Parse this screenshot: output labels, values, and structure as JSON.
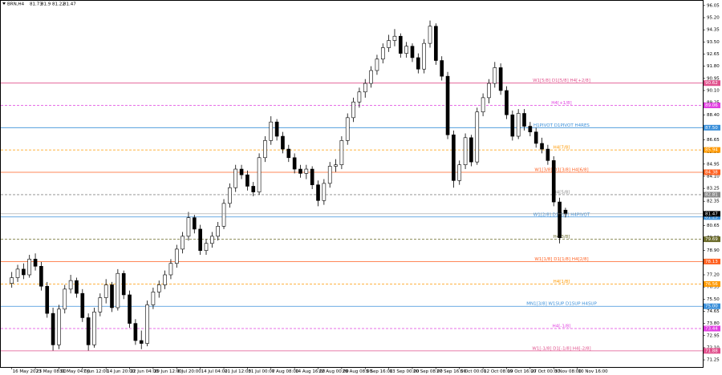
{
  "chart_data": {
    "type": "candlestick",
    "symbol": "BRN,H4",
    "ylim": [
      70.75,
      96.38
    ],
    "xlim": [
      -2,
      117.3
    ],
    "yticks": [
      96.05,
      {
        "value": 95.2,
        "label": "95.20"
      },
      94.35,
      {
        "value": 93.5,
        "label": "93.50"
      },
      92.65,
      {
        "value": 91.8,
        "label": "91.80"
      },
      90.95,
      {
        "value": 90.1,
        "label": "90.10"
      },
      89.25,
      {
        "value": 88.4,
        "label": "88.40"
      },
      87.55,
      86.65,
      {
        "value": 85.8,
        "label": "85.80"
      },
      84.95,
      {
        "value": 84.1,
        "label": "84.10"
      },
      83.25,
      82.35,
      {
        "value": 81.5,
        "label": "81.50"
      },
      80.65,
      {
        "value": 79.8,
        "label": "79.80"
      },
      {
        "value": 78.9,
        "label": "78.90"
      },
      78.05,
      {
        "value": 77.2,
        "label": "77.20"
      },
      76.35,
      {
        "value": 75.5,
        "label": "75.50"
      },
      74.65,
      {
        "value": 73.8,
        "label": "73.80"
      },
      72.95,
      {
        "value": 72.1,
        "label": "72.10"
      },
      71.25
    ],
    "xticks": [
      {
        "value": 0,
        "label": "16 May 2023"
      },
      {
        "value": 4,
        "label": "23 May 08:00"
      },
      {
        "value": 8,
        "label": "31 May 04:00"
      },
      {
        "value": 12,
        "label": "7 Jun 12:00"
      },
      {
        "value": 16,
        "label": "14 Jun 20:00"
      },
      {
        "value": 20,
        "label": "22 Jun 04:00"
      },
      {
        "value": 24,
        "label": "29 Jun 12:00"
      },
      {
        "value": 28,
        "label": "6 Jul 20:00"
      },
      {
        "value": 32,
        "label": "14 Jul 04:00"
      },
      {
        "value": 36,
        "label": "21 Jul 12:00"
      },
      {
        "value": 40,
        "label": "31 Jul 00:00"
      },
      {
        "value": 44,
        "label": "7 Aug 08:00"
      },
      {
        "value": 48,
        "label": "14 Aug 16:00"
      },
      {
        "value": 52,
        "label": "22 Aug 00:00"
      },
      {
        "value": 56,
        "label": "29 Aug 08:00"
      },
      {
        "value": 60,
        "label": "5 Sep 16:00"
      },
      {
        "value": 64,
        "label": "13 Sep 00:00"
      },
      {
        "value": 68,
        "label": "20 Sep 08:00"
      },
      {
        "value": 72,
        "label": "27 Sep 16:00"
      },
      {
        "value": 76,
        "label": "5 Oct 00:00"
      },
      {
        "value": 80,
        "label": "12 Oct 08:00"
      },
      {
        "value": 84,
        "label": "19 Oct 16:00"
      },
      {
        "value": 88,
        "label": "27 Oct 00:00"
      },
      {
        "value": 92,
        "label": "3 Nov 08:00"
      },
      {
        "value": 96,
        "label": "10 Nov 16:00"
      }
    ],
    "candles": [
      [
        76.6,
        77.4,
        76.3,
        77.0
      ],
      [
        77.0,
        77.9,
        76.7,
        77.6
      ],
      [
        77.6,
        78.0,
        76.9,
        77.2
      ],
      [
        77.2,
        78.6,
        77.0,
        78.3
      ],
      [
        78.3,
        78.7,
        77.5,
        77.8
      ],
      [
        77.8,
        78.1,
        76.1,
        76.4
      ],
      [
        76.4,
        76.7,
        74.2,
        74.5
      ],
      [
        74.5,
        74.9,
        71.9,
        72.3
      ],
      [
        72.3,
        75.1,
        72.0,
        74.8
      ],
      [
        74.8,
        76.5,
        74.5,
        76.2
      ],
      [
        76.2,
        77.2,
        75.9,
        76.8
      ],
      [
        76.8,
        77.0,
        75.6,
        75.9
      ],
      [
        75.9,
        76.2,
        73.9,
        74.2
      ],
      [
        74.2,
        74.5,
        71.9,
        72.3
      ],
      [
        72.3,
        74.9,
        72.1,
        74.6
      ],
      [
        74.6,
        75.9,
        74.3,
        75.6
      ],
      [
        75.6,
        76.9,
        75.2,
        76.5
      ],
      [
        76.5,
        76.7,
        74.6,
        74.9
      ],
      [
        74.9,
        77.6,
        74.7,
        77.3
      ],
      [
        77.3,
        77.5,
        75.5,
        75.8
      ],
      [
        75.8,
        76.1,
        73.5,
        73.8
      ],
      [
        73.8,
        74.1,
        72.3,
        72.6
      ],
      [
        72.6,
        73.3,
        72.0,
        72.4
      ],
      [
        72.4,
        75.4,
        72.2,
        75.1
      ],
      [
        75.1,
        76.3,
        74.8,
        76.0
      ],
      [
        76.0,
        76.8,
        75.6,
        76.5
      ],
      [
        76.5,
        77.5,
        76.2,
        77.2
      ],
      [
        77.2,
        78.3,
        76.9,
        78.0
      ],
      [
        78.0,
        79.3,
        77.7,
        79.0
      ],
      [
        79.0,
        80.2,
        78.7,
        79.9
      ],
      [
        79.9,
        81.6,
        79.6,
        81.2
      ],
      [
        81.2,
        81.4,
        80.1,
        80.4
      ],
      [
        80.4,
        80.7,
        78.6,
        78.9
      ],
      [
        78.9,
        79.7,
        78.6,
        79.4
      ],
      [
        79.4,
        80.2,
        79.1,
        79.9
      ],
      [
        79.9,
        80.9,
        79.6,
        80.6
      ],
      [
        80.6,
        82.5,
        80.4,
        82.2
      ],
      [
        82.2,
        83.6,
        81.9,
        83.3
      ],
      [
        83.3,
        84.9,
        83.0,
        84.6
      ],
      [
        84.6,
        84.9,
        83.9,
        84.2
      ],
      [
        84.2,
        84.5,
        83.1,
        83.4
      ],
      [
        83.4,
        83.7,
        82.7,
        83.0
      ],
      [
        83.0,
        85.7,
        82.8,
        85.4
      ],
      [
        85.4,
        86.9,
        85.1,
        86.6
      ],
      [
        86.6,
        88.3,
        86.3,
        87.9
      ],
      [
        87.9,
        88.1,
        86.6,
        86.9
      ],
      [
        86.9,
        87.2,
        85.7,
        86.0
      ],
      [
        86.0,
        86.3,
        85.1,
        85.4
      ],
      [
        85.4,
        85.7,
        84.3,
        84.6
      ],
      [
        84.6,
        84.9,
        84.0,
        84.3
      ],
      [
        84.3,
        84.9,
        83.9,
        84.6
      ],
      [
        84.6,
        84.8,
        83.2,
        83.5
      ],
      [
        83.5,
        83.8,
        82.0,
        82.4
      ],
      [
        82.4,
        83.9,
        82.1,
        83.6
      ],
      [
        83.6,
        85.1,
        83.3,
        84.8
      ],
      [
        84.8,
        85.3,
        84.4,
        84.9
      ],
      [
        84.9,
        86.9,
        84.6,
        86.6
      ],
      [
        86.6,
        88.5,
        86.3,
        88.2
      ],
      [
        88.2,
        89.6,
        87.9,
        89.3
      ],
      [
        89.3,
        90.3,
        88.9,
        90.0
      ],
      [
        90.0,
        90.9,
        89.6,
        90.6
      ],
      [
        90.6,
        91.8,
        90.3,
        91.5
      ],
      [
        91.5,
        92.6,
        91.2,
        92.3
      ],
      [
        92.3,
        93.4,
        92.0,
        93.1
      ],
      [
        93.1,
        94.0,
        92.8,
        93.6
      ],
      [
        93.6,
        94.4,
        93.2,
        93.9
      ],
      [
        93.9,
        94.1,
        92.4,
        92.7
      ],
      [
        92.7,
        93.5,
        92.4,
        93.2
      ],
      [
        93.2,
        93.4,
        92.1,
        92.4
      ],
      [
        92.4,
        92.7,
        91.3,
        91.6
      ],
      [
        91.6,
        93.7,
        91.3,
        93.4
      ],
      [
        93.4,
        95.0,
        93.1,
        94.6
      ],
      [
        94.6,
        94.8,
        91.9,
        92.2
      ],
      [
        92.2,
        92.5,
        90.8,
        91.1
      ],
      [
        91.1,
        91.4,
        86.7,
        87.0
      ],
      [
        87.0,
        87.3,
        83.3,
        83.8
      ],
      [
        83.8,
        85.2,
        83.5,
        84.9
      ],
      [
        84.9,
        87.1,
        84.6,
        86.8
      ],
      [
        86.8,
        87.0,
        84.8,
        85.1
      ],
      [
        85.1,
        88.9,
        84.9,
        88.6
      ],
      [
        88.6,
        89.9,
        88.3,
        89.6
      ],
      [
        89.6,
        90.9,
        89.2,
        90.6
      ],
      [
        90.6,
        92.1,
        90.3,
        91.7
      ],
      [
        91.7,
        92.0,
        89.8,
        90.1
      ],
      [
        90.1,
        90.4,
        88.1,
        88.4
      ],
      [
        88.4,
        88.7,
        86.6,
        86.9
      ],
      [
        86.9,
        88.8,
        86.7,
        88.5
      ],
      [
        88.5,
        88.8,
        87.3,
        87.6
      ],
      [
        87.6,
        87.9,
        86.9,
        87.2
      ],
      [
        87.2,
        87.5,
        86.1,
        86.4
      ],
      [
        86.4,
        86.8,
        85.7,
        86.0
      ],
      [
        86.0,
        86.3,
        84.9,
        85.2
      ],
      [
        85.2,
        85.5,
        82.0,
        82.3
      ],
      [
        82.3,
        82.6,
        79.4,
        79.8
      ],
      [
        81.73,
        81.9,
        81.22,
        81.47
      ]
    ],
    "levels": [
      {
        "price": 90.62,
        "label": "W1[5/8] D1[5/8] H4[+2/8]",
        "color": "#e0508c",
        "dashed": false
      },
      {
        "price": 89.06,
        "label": "H4[+1/8]",
        "color": "#e040e0",
        "dashed": true
      },
      {
        "price": {
          "value": 87.5,
          "label": "87.50"
        },
        "label": "H1PIVOT D1PIVOT H4RES",
        "color": "#3a8fd9",
        "dashed": false
      },
      {
        "price": 85.94,
        "label": "H4[7/8]",
        "color": "#ff9900",
        "dashed": true
      },
      {
        "price": 84.38,
        "label": "W1[3/8] D1[3/8] H4[6/8]",
        "color": "#ff6020",
        "dashed": false
      },
      {
        "price": 82.81,
        "label": "H4[5/8]",
        "color": "#8a8a8a",
        "dashed": true
      },
      {
        "price": 81.25,
        "label": "W1[2/8] D1[2/8] H4PIVOT",
        "color": "#3a8fd9",
        "dashed": false
      },
      {
        "price": 79.69,
        "label": "H4[3/8]",
        "color": "#6b6b2b",
        "dashed": true
      },
      {
        "price": 78.13,
        "label": "W1[1/8] D1[1/8] H4[2/8]",
        "color": "#ff6020",
        "dashed": false
      },
      {
        "price": 76.56,
        "label": "H4[1/8]",
        "color": "#ff9900",
        "dashed": true
      },
      {
        "price": {
          "value": 75,
          "label": "75.00"
        },
        "label": "MN1[3/8] W1SUP D1SUP H4SUP",
        "color": "#3a8fd9",
        "dashed": false
      },
      {
        "price": 73.44,
        "label": "H4[-1/8]",
        "color": "#e040e0",
        "dashed": true
      },
      {
        "price": 71.88,
        "label": "W1[-1/8] D1[-1/8] H4[-2/8]",
        "color": "#e0508c",
        "dashed": false
      }
    ]
  }
}
